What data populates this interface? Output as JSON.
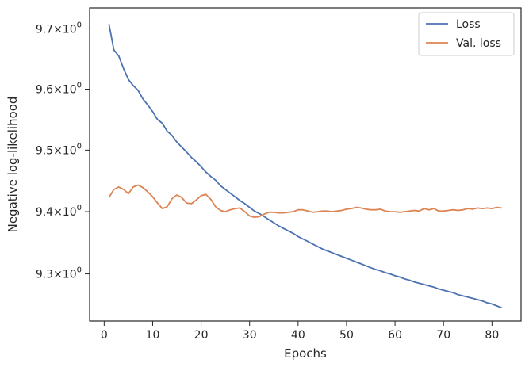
{
  "chart_data": {
    "type": "line",
    "xlabel": "Epochs",
    "ylabel": "Negative log-likelihood",
    "xlim": [
      -3,
      86
    ],
    "ylim": [
      9.225,
      9.735
    ],
    "y_scale": "log",
    "grid": false,
    "legend_position": "top-right",
    "xticks": [
      0,
      10,
      20,
      30,
      40,
      50,
      60,
      70,
      80
    ],
    "yticks": [
      {
        "value": 9.3,
        "mantissa": "9.3"
      },
      {
        "value": 9.4,
        "mantissa": "9.4"
      },
      {
        "value": 9.5,
        "mantissa": "9.5"
      },
      {
        "value": 9.6,
        "mantissa": "9.6"
      },
      {
        "value": 9.7,
        "mantissa": "9.7"
      }
    ],
    "y_tick_base": "10",
    "y_tick_exponent": "0",
    "y_tick_times": "×",
    "series": [
      {
        "name": "Loss",
        "color": "#4c72b0",
        "x": [
          1,
          2,
          3,
          4,
          5,
          6,
          7,
          8,
          9,
          10,
          11,
          12,
          13,
          14,
          15,
          16,
          17,
          18,
          19,
          20,
          21,
          22,
          23,
          24,
          25,
          26,
          27,
          28,
          29,
          30,
          31,
          32,
          33,
          34,
          35,
          36,
          37,
          38,
          39,
          40,
          41,
          42,
          43,
          44,
          45,
          46,
          47,
          48,
          49,
          50,
          51,
          52,
          53,
          54,
          55,
          56,
          57,
          58,
          59,
          60,
          61,
          62,
          63,
          64,
          65,
          66,
          67,
          68,
          69,
          70,
          71,
          72,
          73,
          74,
          75,
          76,
          77,
          78,
          79,
          80,
          81,
          82
        ],
        "values": [
          9.708,
          9.665,
          9.655,
          9.634,
          9.616,
          9.606,
          9.598,
          9.584,
          9.574,
          9.563,
          9.55,
          9.544,
          9.531,
          9.524,
          9.513,
          9.505,
          9.497,
          9.488,
          9.481,
          9.473,
          9.464,
          9.457,
          9.451,
          9.442,
          9.436,
          9.43,
          9.424,
          9.418,
          9.413,
          9.407,
          9.401,
          9.397,
          9.392,
          9.387,
          9.382,
          9.377,
          9.373,
          9.369,
          9.365,
          9.36,
          9.356,
          9.352,
          9.348,
          9.344,
          9.34,
          9.337,
          9.334,
          9.331,
          9.328,
          9.325,
          9.322,
          9.319,
          9.316,
          9.313,
          9.31,
          9.307,
          9.305,
          9.302,
          9.3,
          9.297,
          9.295,
          9.292,
          9.29,
          9.287,
          9.285,
          9.283,
          9.281,
          9.279,
          9.276,
          9.274,
          9.272,
          9.27,
          9.267,
          9.265,
          9.263,
          9.261,
          9.259,
          9.257,
          9.254,
          9.252,
          9.249,
          9.246
        ]
      },
      {
        "name": "Val. loss",
        "color": "#dd8452",
        "x": [
          1,
          2,
          3,
          4,
          5,
          6,
          7,
          8,
          9,
          10,
          11,
          12,
          13,
          14,
          15,
          16,
          17,
          18,
          19,
          20,
          21,
          22,
          23,
          24,
          25,
          26,
          27,
          28,
          29,
          30,
          31,
          32,
          33,
          34,
          35,
          36,
          37,
          38,
          39,
          40,
          41,
          42,
          43,
          44,
          45,
          46,
          47,
          48,
          49,
          50,
          51,
          52,
          53,
          54,
          55,
          56,
          57,
          58,
          59,
          60,
          61,
          62,
          63,
          64,
          65,
          66,
          67,
          68,
          69,
          70,
          71,
          72,
          73,
          74,
          75,
          76,
          77,
          78,
          79,
          80,
          81,
          82
        ],
        "values": [
          9.423,
          9.436,
          9.44,
          9.436,
          9.429,
          9.44,
          9.443,
          9.439,
          9.432,
          9.424,
          9.414,
          9.405,
          9.408,
          9.421,
          9.427,
          9.423,
          9.414,
          9.413,
          9.419,
          9.426,
          9.428,
          9.42,
          9.408,
          9.402,
          9.4,
          9.403,
          9.405,
          9.406,
          9.4,
          9.393,
          9.391,
          9.392,
          9.396,
          9.399,
          9.399,
          9.398,
          9.398,
          9.399,
          9.4,
          9.403,
          9.403,
          9.401,
          9.399,
          9.4,
          9.401,
          9.401,
          9.4,
          9.401,
          9.402,
          9.404,
          9.405,
          9.407,
          9.406,
          9.404,
          9.403,
          9.403,
          9.404,
          9.401,
          9.4,
          9.4,
          9.399,
          9.4,
          9.401,
          9.402,
          9.401,
          9.405,
          9.403,
          9.405,
          9.401,
          9.401,
          9.402,
          9.403,
          9.402,
          9.403,
          9.405,
          9.404,
          9.406,
          9.405,
          9.406,
          9.405,
          9.407,
          9.406
        ]
      }
    ]
  }
}
